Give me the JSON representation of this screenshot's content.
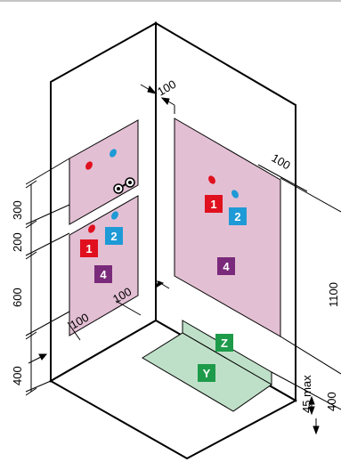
{
  "dimensions": {
    "top_100": "100",
    "right_100": "100",
    "left_300": "300",
    "left_200": "200",
    "left_600": "600",
    "left_400": "400",
    "bottom_100_a": "100",
    "bottom_100_b": "100",
    "right_1100": "1100",
    "right_45max": "45 max",
    "right_400": "400"
  },
  "markers": {
    "upper_left_1": "1",
    "upper_left_2": "2",
    "upper_left_4": "4",
    "right_1": "1",
    "right_2": "2",
    "right_4": "4",
    "floor_z": "Z",
    "floor_y": "Y"
  },
  "colors": {
    "zone_pink": "#e3bfd3",
    "floor_green": "#bfe0c8",
    "marker_red": "#e0101e",
    "marker_blue": "#1e9ad6",
    "marker_purple": "#7a2a7a",
    "marker_green": "#1e9b4a",
    "line": "#000000"
  }
}
